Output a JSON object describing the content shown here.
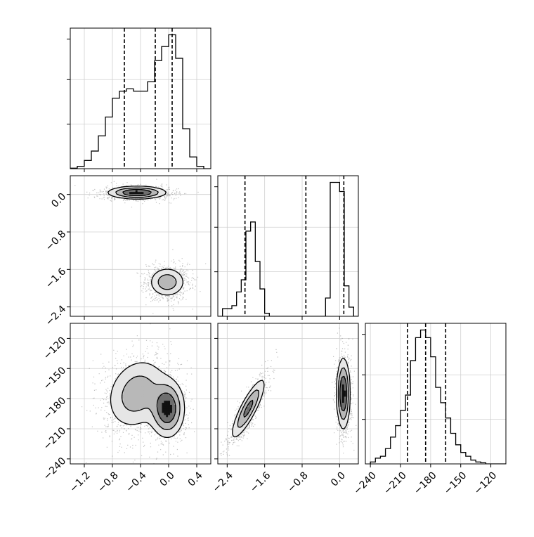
{
  "chart_data": {
    "type": "corner",
    "title": "",
    "parameters": [
      {
        "range": [
          -1.4,
          0.6
        ],
        "ticks": [
          "−1.2",
          "−0.8",
          "−0.4",
          "0.0",
          "0.4"
        ],
        "tick_values": [
          -1.2,
          -0.8,
          -0.4,
          0.0,
          0.4
        ]
      },
      {
        "range": [
          -2.6,
          0.4
        ],
        "ticks": [
          "−2.4",
          "−1.6",
          "−0.8",
          "0.0"
        ],
        "tick_values": [
          -2.4,
          -1.6,
          -0.8,
          0.0
        ]
      },
      {
        "range": [
          -245,
          -105
        ],
        "ticks": [
          "−240",
          "−210",
          "−180",
          "−150",
          "−120"
        ],
        "tick_values": [
          -240,
          -210,
          -180,
          -150,
          -120
        ]
      }
    ],
    "histograms": [
      {
        "parameter": 0,
        "bin_edges": [
          -1.4,
          -1.3,
          -1.2,
          -1.1,
          -1.0,
          -0.9,
          -0.8,
          -0.7,
          -0.6,
          -0.5,
          -0.4,
          -0.3,
          -0.2,
          -0.1,
          0.0,
          0.1,
          0.2,
          0.3,
          0.4,
          0.5,
          0.6
        ],
        "counts": [
          0.2,
          1.0,
          3.5,
          7.5,
          14,
          22,
          30,
          33,
          34,
          33,
          33,
          37,
          46,
          52,
          57,
          47,
          17,
          5,
          1,
          0
        ],
        "quantiles": [
          -0.63,
          -0.19,
          0.05
        ]
      },
      {
        "parameter": 1,
        "bin_edges": [
          -2.6,
          -2.5,
          -2.4,
          -2.3,
          -2.2,
          -2.1,
          -2.0,
          -1.9,
          -1.8,
          -1.7,
          -1.6,
          -1.5,
          -1.4,
          -1.3,
          -1.2,
          -1.1,
          -1.0,
          -0.9,
          -0.8,
          -0.7,
          -0.6,
          -0.5,
          -0.4,
          -0.3,
          -0.2,
          -0.1,
          0.0,
          0.1,
          0.2,
          0.3,
          0.4
        ],
        "counts": [
          0,
          2.5,
          2.5,
          3.5,
          8,
          12,
          28,
          31,
          18,
          9,
          1,
          0,
          0,
          0,
          0,
          0,
          0,
          0,
          0,
          0,
          0,
          0,
          0,
          6,
          44,
          44,
          41,
          10,
          3,
          0
        ],
        "quantiles": [
          -2.02,
          -0.72,
          0.09
        ]
      },
      {
        "parameter": 2,
        "bin_edges": [
          -240,
          -235,
          -230,
          -225,
          -220,
          -215,
          -210,
          -205,
          -200,
          -195,
          -190,
          -185,
          -180,
          -175,
          -170,
          -165,
          -160,
          -155,
          -150,
          -145,
          -140,
          -135,
          -130,
          -125,
          -120,
          -115,
          -110,
          -105
        ],
        "counts": [
          0.5,
          1.5,
          2,
          4,
          7,
          10,
          14,
          18,
          27,
          33,
          35,
          33,
          28,
          20,
          16,
          12,
          8,
          5,
          3,
          2,
          1,
          0.5,
          0.3,
          0,
          0,
          0,
          0
        ],
        "quantiles": [
          -203,
          -185,
          -165
        ]
      }
    ],
    "pairs": [
      {
        "x_param": 0,
        "y_param": 1,
        "modes": [
          {
            "cx": -0.45,
            "cy": 0.04,
            "sx": 0.2,
            "sy": 0.065,
            "rho": 0.0,
            "weight": 0.55
          },
          {
            "cx": -0.02,
            "cy": -1.87,
            "sx": 0.13,
            "sy": 0.16,
            "rho": 0.0,
            "weight": 0.45
          }
        ]
      },
      {
        "x_param": 0,
        "y_param": 2,
        "modes": [
          {
            "cx": -0.45,
            "cy": -175,
            "sx": 0.22,
            "sy": 18,
            "rho": 0.2,
            "weight": 0.55
          },
          {
            "cx": -0.02,
            "cy": -190,
            "sx": 0.12,
            "sy": 14,
            "rho": 0.0,
            "weight": 0.45
          }
        ]
      },
      {
        "x_param": 1,
        "y_param": 2,
        "modes": [
          {
            "cx": -1.95,
            "cy": -190,
            "sx": 0.18,
            "sy": 15,
            "rho": 0.85,
            "weight": 0.45
          },
          {
            "cx": 0.08,
            "cy": -175,
            "sx": 0.07,
            "sy": 17,
            "rho": 0.0,
            "weight": 0.55
          }
        ]
      }
    ],
    "grid": true,
    "legend": "none"
  }
}
